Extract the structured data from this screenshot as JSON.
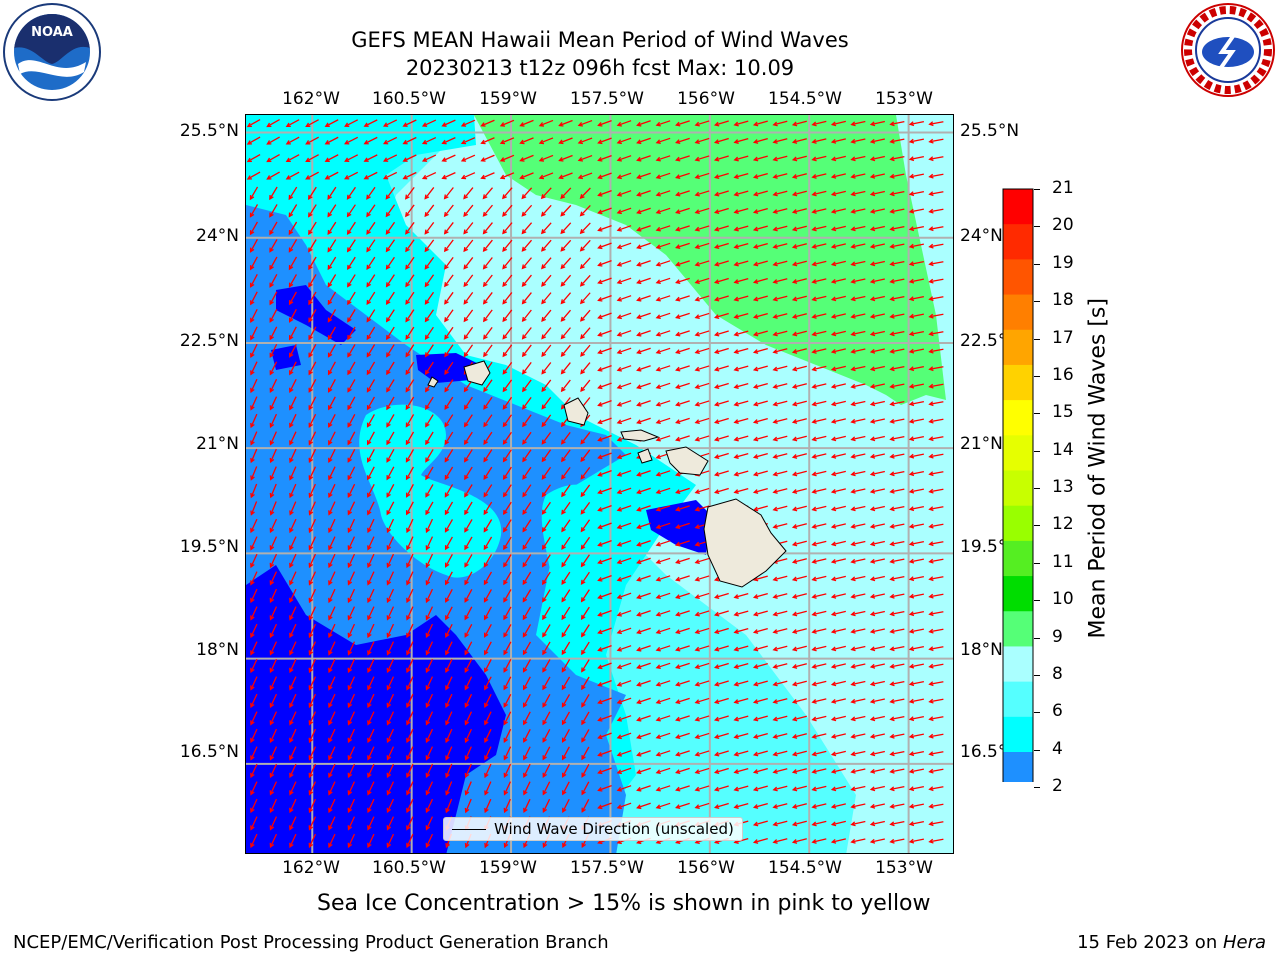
{
  "title": {
    "line1": "GEFS MEAN Hawaii Mean Period of Wind Waves",
    "line2": "20230213 t12z 096h fcst   Max: 10.09"
  },
  "logos": {
    "left": {
      "name": "noaa-logo",
      "text": "NOAA"
    },
    "right": {
      "name": "nws-logo",
      "text": "NATIONAL WEATHER SERVICE"
    }
  },
  "map": {
    "lon_labels": [
      "162°W",
      "160.5°W",
      "159°W",
      "157.5°W",
      "156°W",
      "154.5°W",
      "153°W"
    ],
    "lat_labels": [
      "25.5°N",
      "24°N",
      "22.5°N",
      "21°N",
      "19.5°N",
      "18°N",
      "16.5°N"
    ],
    "lon_values": [
      -162,
      -160.5,
      -159,
      -157.5,
      -156,
      -154.5,
      -153
    ],
    "lat_values": [
      25.5,
      24,
      22.5,
      21,
      19.5,
      18,
      16.5
    ],
    "lon_range": [
      -163,
      -152.3
    ],
    "lat_range": [
      15.2,
      25.75
    ],
    "legend_label": "Wind Wave Direction (unscaled)",
    "arrow_color": "#ff0000",
    "land_color": "#eeeadc",
    "grid_color": "#b0b0b0"
  },
  "colorbar": {
    "title": "Mean Period of Wind Waves [s]",
    "levels": [
      "21",
      "20",
      "19",
      "18",
      "17",
      "16",
      "15",
      "14",
      "13",
      "12",
      "11",
      "10",
      "9",
      "8",
      "6",
      "4",
      "2"
    ],
    "colors": [
      "#ff0000",
      "#ff2a00",
      "#ff5500",
      "#ff7f00",
      "#ffa500",
      "#ffd200",
      "#ffff00",
      "#e6ff00",
      "#c8ff00",
      "#99ff00",
      "#55ee22",
      "#00dd00",
      "#55ff77",
      "#aaffff",
      "#55ffff",
      "#00ffff",
      "#1e90ff"
    ],
    "under_color": "#0000ff"
  },
  "note": "Sea Ice Concentration > 15% is shown in pink to yellow",
  "footer": {
    "left": "NCEP/EMC/Verification Post Processing Product Generation Branch",
    "right_prefix": "15 Feb 2023 on ",
    "right_machine": "Hera"
  }
}
